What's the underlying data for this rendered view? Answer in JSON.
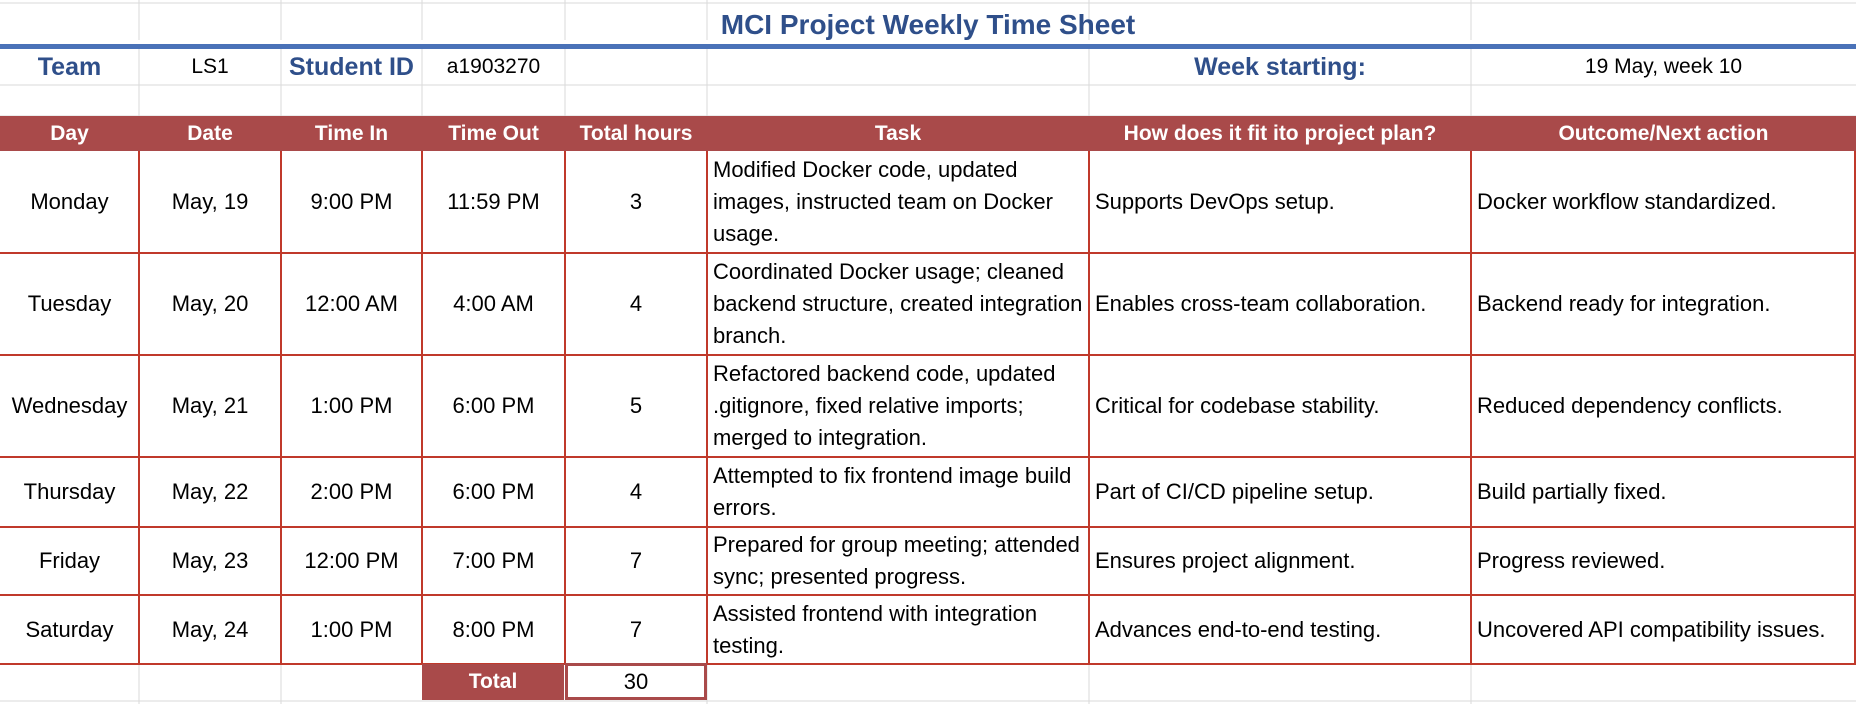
{
  "sheet": {
    "title": "MCI Project Weekly Time Sheet",
    "team_label": "Team",
    "team_value": "LS1",
    "student_id_label": "Student ID",
    "student_id_value": "a1903270",
    "week_label": "Week starting:",
    "week_value": "19 May, week 10"
  },
  "table": {
    "headers": [
      "Day",
      "Date",
      "Time In",
      "Time Out",
      "Total hours",
      "Task",
      "How does it fit ito project plan?",
      "Outcome/Next action"
    ],
    "rows": [
      {
        "day": "Monday",
        "date": "May, 19",
        "time_in": "9:00 PM",
        "time_out": "11:59 PM",
        "hours": "3",
        "task": "Modified Docker code, updated images, instructed team on Docker usage.",
        "fit": "Supports DevOps setup.",
        "outcome": "Docker workflow standardized."
      },
      {
        "day": "Tuesday",
        "date": "May, 20",
        "time_in": "12:00 AM",
        "time_out": "4:00 AM",
        "hours": "4",
        "task": "Coordinated Docker usage; cleaned backend structure, created integration branch.",
        "fit": "Enables cross-team collaboration.",
        "outcome": "Backend ready for integration."
      },
      {
        "day": "Wednesday",
        "date": "May, 21",
        "time_in": "1:00 PM",
        "time_out": "6:00 PM",
        "hours": "5",
        "task": "Refactored backend code, updated .gitignore, fixed relative imports; merged to integration.",
        "fit": "Critical for codebase stability.",
        "outcome": "Reduced dependency conflicts."
      },
      {
        "day": "Thursday",
        "date": "May, 22",
        "time_in": "2:00 PM",
        "time_out": "6:00 PM",
        "hours": "4",
        "task": "Attempted to fix frontend image build errors.",
        "fit": "Part of CI/CD pipeline setup.",
        "outcome": "Build partially fixed."
      },
      {
        "day": "Friday",
        "date": "May, 23",
        "time_in": "12:00 PM",
        "time_out": "7:00 PM",
        "hours": "7",
        "task": "Prepared for group meeting; attended sync; presented progress.",
        "fit": "Ensures project alignment.",
        "outcome": "Progress reviewed."
      },
      {
        "day": "Saturday",
        "date": "May, 24",
        "time_in": "1:00 PM",
        "time_out": "8:00 PM",
        "hours": "7",
        "task": "Assisted frontend with integration testing.",
        "fit": "Advances end-to-end testing.",
        "outcome": "Uncovered API compatibility issues."
      }
    ],
    "total_label": "Total",
    "total_value": "30"
  },
  "colors": {
    "title_blue": "#2f4f8a",
    "header_red": "#a94a4a",
    "border_red": "#c0392b",
    "gridline": "#dadada"
  }
}
